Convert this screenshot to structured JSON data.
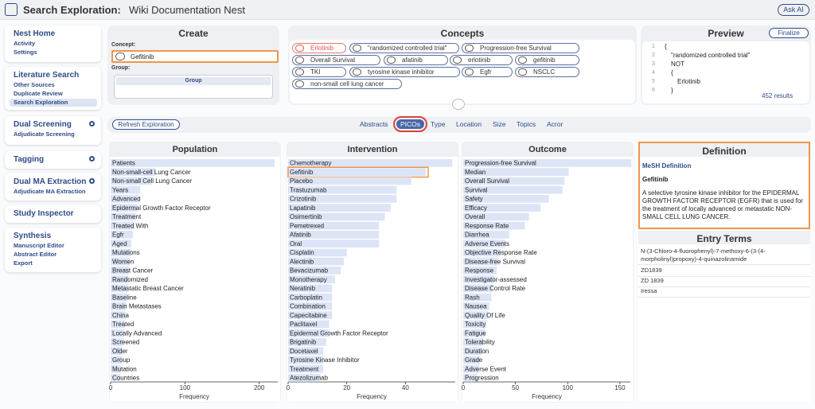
{
  "header": {
    "title": "Search Exploration:",
    "nest": "Wiki Documentation Nest",
    "ask_ai": "Ask AI"
  },
  "sidebar": [
    {
      "title": "Nest Home",
      "items": [
        "Activity",
        "Settings"
      ]
    },
    {
      "title": "Literature Search",
      "items": [
        "Other Sources",
        "Duplicate Review",
        "Search Exploration"
      ],
      "active": 2
    },
    {
      "title": "Dual Screening",
      "items": [
        "Adjudicate Screening"
      ],
      "gear": true
    },
    {
      "title": "Tagging",
      "items": [],
      "gear": true
    },
    {
      "title": "Dual MA Extraction",
      "items": [
        "Adjudicate MA Extraction"
      ],
      "gear": true
    },
    {
      "title": "Study Inspector",
      "items": []
    },
    {
      "title": "Synthesis",
      "items": [
        "Manuscript Editor",
        "Abstract Editor",
        "Export"
      ]
    }
  ],
  "create": {
    "title": "Create",
    "concept_label": "Concept:",
    "concept": "Gefitinib",
    "group_label": "Group:",
    "group": "Group"
  },
  "concepts": {
    "title": "Concepts",
    "chips": [
      {
        "text": "Erlotinib",
        "excluded": true
      },
      {
        "text": "\"randomized controlled trial\""
      },
      {
        "text": "Progression-free Survival"
      },
      {
        "text": "Overall Survival"
      },
      {
        "text": "afatinib"
      },
      {
        "text": "erlotinib"
      },
      {
        "text": "gefitinib"
      },
      {
        "text": "TKI"
      },
      {
        "text": "tyrosine kinase inhibitor"
      },
      {
        "text": "Egfr"
      },
      {
        "text": "NSCLC"
      },
      {
        "text": "non-small cell lung cancer"
      }
    ]
  },
  "preview": {
    "title": "Preview",
    "finalize": "Finalize",
    "lines": [
      {
        "number": "1",
        "text": "{"
      },
      {
        "number": "2",
        "text": "\"randomized controlled trial\""
      },
      {
        "number": "3",
        "text": "NOT"
      },
      {
        "number": "4",
        "text": "{"
      },
      {
        "number": "5",
        "text": "Erlotinib"
      },
      {
        "number": "6",
        "text": "}"
      }
    ],
    "results": "452 results"
  },
  "tabs": {
    "refresh": "Refresh Exploration",
    "items": [
      "Abstracts",
      "PICOs",
      "Type",
      "Location",
      "Size",
      "Topics",
      "Acror"
    ],
    "active": 1
  },
  "chart_data": [
    {
      "type": "bar",
      "orientation": "horizontal",
      "title": "Population",
      "xlabel": "Frequency",
      "color": "#dce4f6",
      "categories": [
        "Patients",
        "Non-small-cell Lung Cancer",
        "Non-small Cell Lung Cancer",
        "Years",
        "Advanced",
        "Epidermal Growth Factor Receptor",
        "Treatment",
        "Treated With",
        "Egfr",
        "Aged",
        "Mutations",
        "Women",
        "Breast Cancer",
        "Randomized",
        "Metastatic Breast Cancer",
        "Baseline",
        "Brain Metastases",
        "China",
        "Treated",
        "Locally Advanced",
        "Screened",
        "Older",
        "Group",
        "Mutation",
        "Countries"
      ],
      "values": [
        221,
        60,
        55,
        40,
        38,
        36,
        34,
        32,
        30,
        28,
        27,
        26,
        25,
        24,
        23,
        22,
        21,
        20,
        19,
        18,
        17,
        16,
        15,
        14,
        13
      ],
      "xlim": [
        0,
        225
      ],
      "xticks": [
        0,
        100,
        200
      ]
    },
    {
      "type": "bar",
      "orientation": "horizontal",
      "title": "Intervention",
      "xlabel": "Frequency",
      "color": "#dce4f6",
      "highlighted": 1,
      "categories": [
        "Chemotherapy",
        "Gefitinib",
        "Placebo",
        "Trastuzumab",
        "Crizotinib",
        "Lapatinib",
        "Osimertinib",
        "Pemetrexed",
        "Afatinib",
        "Oral",
        "Cisplatin",
        "Alectinib",
        "Bevacizumab",
        "Monotherapy",
        "Neratinib",
        "Carboplatin",
        "Combination",
        "Capecitabine",
        "Paclitaxel",
        "Epidermal Growth Factor Receptor",
        "Brigatinib",
        "Docetaxel",
        "Tyrosine Kinase Inhibitor",
        "Treatment",
        "Atezolizumab"
      ],
      "values": [
        56,
        47,
        42,
        37,
        37,
        35,
        33,
        31,
        31,
        31,
        20,
        19,
        18,
        16,
        15,
        15,
        15,
        15,
        14,
        14,
        13,
        12,
        12,
        12,
        11
      ],
      "xlim": [
        0,
        57
      ],
      "xticks": [
        0,
        20,
        40
      ]
    },
    {
      "type": "bar",
      "orientation": "horizontal",
      "title": "Outcome",
      "xlabel": "Frequency",
      "color": "#dce4f6",
      "categories": [
        "Progression-free Survival",
        "Median",
        "Overall Survival",
        "Survival",
        "Safety",
        "Efficacy",
        "Overall",
        "Response Rate",
        "Diarrhea",
        "Adverse Events",
        "Objective Response Rate",
        "Disease-free Survival",
        "Response",
        "Investigator-assessed",
        "Disease Control Rate",
        "Rash",
        "Nausea",
        "Quality Of Life",
        "Toxicity",
        "Fatigue",
        "Tolerability",
        "Duration",
        "Grade",
        "Adverse Event",
        "Progression"
      ],
      "values": [
        161,
        101,
        97,
        95,
        82,
        74,
        63,
        59,
        44,
        40,
        36,
        34,
        32,
        30,
        28,
        27,
        25,
        24,
        22,
        21,
        19,
        18,
        16,
        15,
        13
      ],
      "xlim": [
        0,
        160
      ],
      "xticks": [
        0,
        50,
        100,
        150
      ]
    }
  ],
  "definition": {
    "title": "Definition",
    "source": "MeSH Definition",
    "term": "Gefitinib",
    "text": "A selective tyrosine kinase inhibitor for the EPIDERMAL GROWTH FACTOR RECEPTOR (EGFR) that is used for the treatment of locally advanced or metastatic NON-SMALL CELL LUNG CANCER.",
    "entry_title": "Entry Terms",
    "entries": [
      "N-(3-Chloro-4-fluorophenyl)-7-methoxy-6-(3-(4-morpholinyl)propoxy)-4-quinazolinamide",
      "ZD1839",
      "ZD 1839",
      "Iressa"
    ]
  }
}
